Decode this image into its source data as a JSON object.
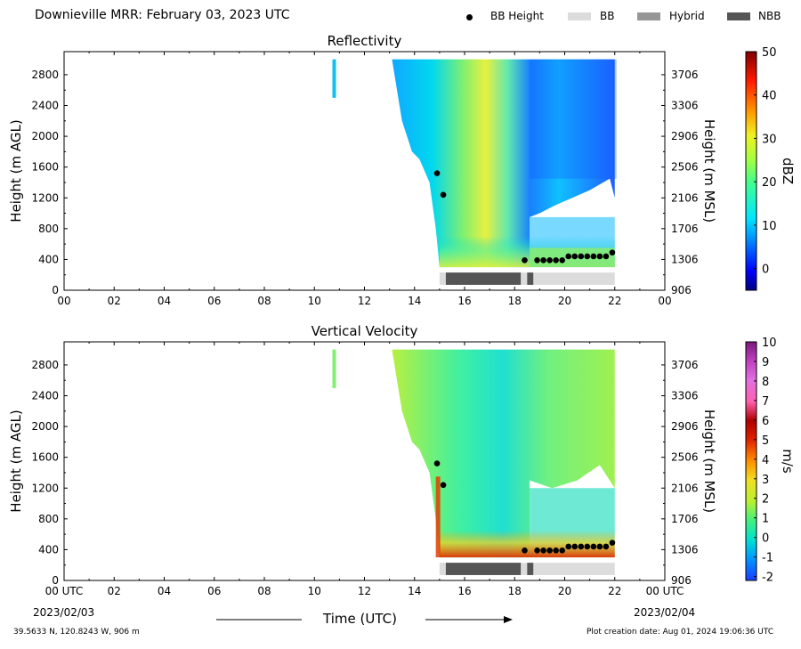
{
  "header": {
    "title": "Downieville MRR:  February 03, 2023 UTC"
  },
  "legend": {
    "items": [
      {
        "label": "BB Height",
        "symbol": "dot",
        "color": "#000000"
      },
      {
        "label": "BB",
        "symbol": "box",
        "color": "#dcdcdc"
      },
      {
        "label": "Hybrid",
        "symbol": "box",
        "color": "#969696"
      },
      {
        "label": "NBB",
        "symbol": "box",
        "color": "#555555"
      }
    ]
  },
  "footer": {
    "location": "39.5633 N, 120.8243 W, 906 m",
    "creation": "Plot creation date: Aug 01, 2024 19:06:36 UTC",
    "xlabel": "Time (UTC)",
    "start_date": "2023/02/03",
    "end_date": "2023/02/04"
  },
  "chart_data": [
    {
      "type": "heatmap",
      "title": "Reflectivity",
      "ylabel": "Height (m AGL)",
      "y2label": "Height (m MSL)",
      "colorbar_label": "dBZ",
      "colorbar_ticks": [
        0,
        10,
        20,
        30,
        40,
        50
      ],
      "colorbar_range": [
        -5,
        50
      ],
      "xlim": [
        0,
        24
      ],
      "ylim": [
        0,
        3100
      ],
      "x_ticks": [
        "00",
        "02",
        "04",
        "06",
        "08",
        "10",
        "12",
        "14",
        "16",
        "18",
        "20",
        "22",
        "00"
      ],
      "y_ticks": [
        0,
        400,
        800,
        1200,
        1600,
        2000,
        2400,
        2800
      ],
      "y2_ticks": [
        906,
        1306,
        1706,
        2106,
        2506,
        2906,
        3306,
        3706
      ],
      "bb_height": [
        {
          "x": 14.9,
          "y": 1520
        },
        {
          "x": 15.15,
          "y": 1240
        },
        {
          "x": 18.4,
          "y": 390
        },
        {
          "x": 18.9,
          "y": 390
        },
        {
          "x": 19.15,
          "y": 390
        },
        {
          "x": 19.4,
          "y": 390
        },
        {
          "x": 19.65,
          "y": 390
        },
        {
          "x": 19.9,
          "y": 390
        },
        {
          "x": 20.15,
          "y": 440
        },
        {
          "x": 20.4,
          "y": 440
        },
        {
          "x": 20.65,
          "y": 440
        },
        {
          "x": 20.9,
          "y": 440
        },
        {
          "x": 21.15,
          "y": 440
        },
        {
          "x": 21.4,
          "y": 440
        },
        {
          "x": 21.65,
          "y": 440
        },
        {
          "x": 21.9,
          "y": 490
        }
      ],
      "precip_type_bar": [
        {
          "type": "BB",
          "start": 15.0,
          "end": 15.25
        },
        {
          "type": "NBB",
          "start": 15.25,
          "end": 18.25
        },
        {
          "type": "BB",
          "start": 18.25,
          "end": 18.5
        },
        {
          "type": "NBB",
          "start": 18.5,
          "end": 18.75
        },
        {
          "type": "BB",
          "start": 18.75,
          "end": 22.0
        }
      ]
    },
    {
      "type": "heatmap",
      "title": "Vertical Velocity",
      "ylabel": "Height (m AGL)",
      "y2label": "Height (m MSL)",
      "colorbar_label": "m/s",
      "colorbar_ticks": [
        -2,
        -1,
        0,
        1,
        2,
        3,
        4,
        5,
        6,
        7,
        8,
        9,
        10
      ],
      "colorbar_range": [
        -2.2,
        10
      ],
      "xlim": [
        0,
        24
      ],
      "ylim": [
        0,
        3100
      ],
      "x_ticks": [
        "00 UTC",
        "02",
        "04",
        "06",
        "08",
        "10",
        "12",
        "14",
        "16",
        "18",
        "20",
        "22",
        "00 UTC"
      ],
      "y_ticks": [
        0,
        400,
        800,
        1200,
        1600,
        2000,
        2400,
        2800
      ],
      "y2_ticks": [
        906,
        1306,
        1706,
        2106,
        2506,
        2906,
        3306,
        3706
      ],
      "bb_height": [
        {
          "x": 14.9,
          "y": 1520
        },
        {
          "x": 15.15,
          "y": 1240
        },
        {
          "x": 18.4,
          "y": 390
        },
        {
          "x": 18.9,
          "y": 390
        },
        {
          "x": 19.15,
          "y": 390
        },
        {
          "x": 19.4,
          "y": 390
        },
        {
          "x": 19.65,
          "y": 390
        },
        {
          "x": 19.9,
          "y": 390
        },
        {
          "x": 20.15,
          "y": 440
        },
        {
          "x": 20.4,
          "y": 440
        },
        {
          "x": 20.65,
          "y": 440
        },
        {
          "x": 20.9,
          "y": 440
        },
        {
          "x": 21.15,
          "y": 440
        },
        {
          "x": 21.4,
          "y": 440
        },
        {
          "x": 21.65,
          "y": 440
        },
        {
          "x": 21.9,
          "y": 490
        }
      ],
      "precip_type_bar": [
        {
          "type": "BB",
          "start": 15.0,
          "end": 15.25
        },
        {
          "type": "NBB",
          "start": 15.25,
          "end": 18.25
        },
        {
          "type": "BB",
          "start": 18.25,
          "end": 18.5
        },
        {
          "type": "NBB",
          "start": 18.5,
          "end": 18.75
        },
        {
          "type": "BB",
          "start": 18.75,
          "end": 22.0
        }
      ]
    }
  ]
}
